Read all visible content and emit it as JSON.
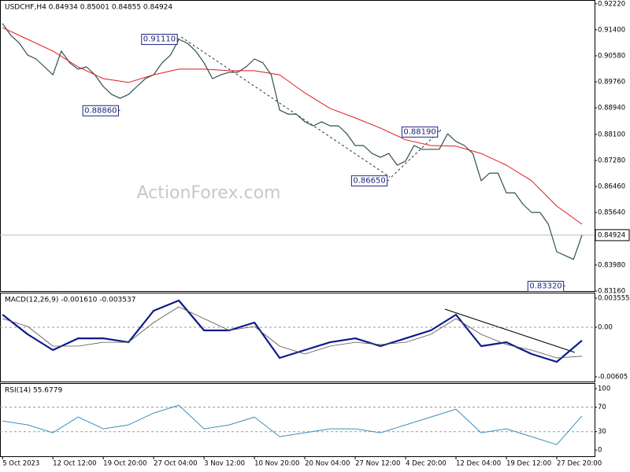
{
  "chart_data": [
    {
      "type": "line",
      "title": "USDCHF,H4  0.84934 0.85001 0.84855 0.84924",
      "watermark": "ActionForex.com",
      "xlim": [
        -0.3,
        70.5
      ],
      "ylim": [
        0.8316,
        0.9234
      ],
      "yticks": [
        {
          "value": 0.9222,
          "label": "0.92220"
        },
        {
          "value": 0.914,
          "label": "0.91400"
        },
        {
          "value": 0.9058,
          "label": "0.90580"
        },
        {
          "value": 0.8976,
          "label": "0.89760"
        },
        {
          "value": 0.8894,
          "label": "0.88940"
        },
        {
          "value": 0.881,
          "label": "0.88100"
        },
        {
          "value": 0.8728,
          "label": "0.87280"
        },
        {
          "value": 0.8646,
          "label": "0.86460"
        },
        {
          "value": 0.8564,
          "label": "0.85640"
        },
        {
          "value": 0.8398,
          "label": "0.83980"
        },
        {
          "value": 0.8316,
          "label": "0.83160"
        }
      ],
      "last_price": 0.84924,
      "series": [
        {
          "name": "USDCHF",
          "color": "#2f4f4f",
          "width": 1.2,
          "x": [
            0,
            1,
            2,
            3,
            4,
            5,
            6,
            7,
            8,
            9,
            10,
            11,
            12,
            13,
            14,
            15,
            16,
            17,
            18,
            19,
            20,
            21,
            22,
            23,
            24,
            25,
            26,
            27,
            28,
            29,
            30,
            31,
            32,
            33,
            34,
            35,
            36,
            37,
            38,
            39,
            40,
            41,
            42,
            43,
            44,
            45,
            46,
            47,
            48,
            49,
            50,
            51,
            52,
            53,
            54,
            55,
            56,
            57,
            58,
            59,
            60,
            61,
            62,
            63,
            64,
            65,
            66,
            67,
            68,
            69
          ],
          "values": [
            0.916,
            0.9122,
            0.9098,
            0.906,
            0.9048,
            0.9023,
            0.8998,
            0.9073,
            0.9036,
            0.9016,
            0.9023,
            0.8998,
            0.8961,
            0.8936,
            0.8924,
            0.8936,
            0.8961,
            0.8986,
            0.8998,
            0.9036,
            0.906,
            0.911,
            0.9098,
            0.9073,
            0.9036,
            0.8986,
            0.8998,
            0.9006,
            0.9006,
            0.9023,
            0.9048,
            0.9036,
            0.8998,
            0.8887,
            0.8874,
            0.8874,
            0.885,
            0.8837,
            0.885,
            0.8837,
            0.8837,
            0.8812,
            0.8775,
            0.8775,
            0.875,
            0.8738,
            0.875,
            0.8713,
            0.8726,
            0.8775,
            0.8763,
            0.8763,
            0.8763,
            0.8812,
            0.8788,
            0.8775,
            0.875,
            0.8664,
            0.8688,
            0.8688,
            0.8626,
            0.8626,
            0.8589,
            0.8564,
            0.8564,
            0.8527,
            0.844,
            0.8428,
            0.8416,
            0.84924
          ]
        },
        {
          "name": "MA",
          "color": "#e0191e",
          "width": 1,
          "x": [
            0,
            3,
            6,
            9,
            12,
            15,
            18,
            21,
            24,
            27,
            30,
            33,
            36,
            39,
            42,
            45,
            48,
            51,
            54,
            57,
            60,
            63,
            66,
            69
          ],
          "values": [
            0.9147,
            0.911,
            0.9073,
            0.9023,
            0.8986,
            0.8974,
            0.8998,
            0.9016,
            0.9016,
            0.9011,
            0.9011,
            0.8998,
            0.8941,
            0.8892,
            0.8862,
            0.883,
            0.8793,
            0.8775,
            0.8773,
            0.875,
            0.8713,
            0.8664,
            0.8584,
            0.8527
          ]
        }
      ],
      "annotations": [
        {
          "x": 21,
          "value": 0.9111,
          "label": "0.91110"
        },
        {
          "x": 14,
          "value": 0.8886,
          "label": "0.88860"
        },
        {
          "x": 52,
          "value": 0.8819,
          "label": "0.88190"
        },
        {
          "x": 46,
          "value": 0.8665,
          "label": "0.86650"
        },
        {
          "x": 67,
          "value": 0.8332,
          "label": "0.83320"
        }
      ]
    },
    {
      "type": "line",
      "title": "MACD(12,26,9) -0.001610 -0.003537",
      "xlim": [
        -0.3,
        70.5
      ],
      "ylim": [
        -0.00663,
        0.00423
      ],
      "yticks": [
        0.003555,
        {
          "value": 0,
          "label": "0.00"
        },
        -0.00605
      ],
      "levels": [
        0
      ],
      "series": [
        {
          "name": "MACD",
          "color": "#0b1a8c",
          "width": 2.2,
          "x": [
            0,
            3,
            6,
            9,
            12,
            15,
            18,
            21,
            24,
            27,
            30,
            33,
            36,
            39,
            42,
            45,
            48,
            51,
            54,
            57,
            60,
            63,
            66,
            69
          ],
          "values": [
            0.00154,
            -0.00086,
            -0.00279,
            -0.00135,
            -0.00135,
            -0.00183,
            0.00202,
            0.00327,
            -0.00038,
            -0.00038,
            0.00058,
            -0.00375,
            -0.00279,
            -0.00183,
            -0.00135,
            -0.00231,
            -0.00135,
            -0.00038,
            0.00154,
            -0.00231,
            -0.00183,
            -0.00327,
            -0.00423,
            -0.00161
          ]
        },
        {
          "name": "Signal",
          "color": "#555555",
          "width": 0.8,
          "x": [
            0,
            3,
            6,
            9,
            12,
            15,
            18,
            21,
            24,
            27,
            30,
            33,
            36,
            39,
            42,
            45,
            48,
            51,
            54,
            57,
            60,
            63,
            66,
            69
          ],
          "values": [
            0.00106,
            0.0001,
            -0.00231,
            -0.00231,
            -0.00183,
            -0.00183,
            0.00058,
            0.0025,
            0.00106,
            -0.00038,
            0.0001,
            -0.00231,
            -0.00327,
            -0.00231,
            -0.00183,
            -0.00211,
            -0.00183,
            -0.00086,
            0.00106,
            -0.00086,
            -0.00211,
            -0.00279,
            -0.00375,
            -0.003537
          ]
        }
      ]
    },
    {
      "type": "line",
      "title": "RSI(14) 55.6779",
      "xlim": [
        -0.3,
        70.5
      ],
      "ylim": [
        -10,
        109
      ],
      "yticks": [
        100,
        70,
        30,
        0
      ],
      "levels": [
        70,
        30
      ],
      "xticks": [
        {
          "value": 0,
          "label": "5 Oct 2023"
        },
        {
          "value": 6,
          "label": "12 Oct 12:00"
        },
        {
          "value": 12,
          "label": "19 Oct 20:00"
        },
        {
          "value": 18,
          "label": "27 Oct 04:00"
        },
        {
          "value": 24,
          "label": "3 Nov 12:00"
        },
        {
          "value": 30,
          "label": "10 Nov 20:00"
        },
        {
          "value": 36,
          "label": "20 Nov 04:00"
        },
        {
          "value": 42,
          "label": "27 Nov 12:00"
        },
        {
          "value": 48,
          "label": "4 Dec 20:00"
        },
        {
          "value": 54,
          "label": "12 Dec 04:00"
        },
        {
          "value": 60,
          "label": "19 Dec 12:00"
        },
        {
          "value": 66,
          "label": "27 Dec 20:00"
        }
      ],
      "series": [
        {
          "name": "RSI",
          "color": "#3d8fbf",
          "width": 1,
          "x": [
            0,
            3,
            6,
            9,
            12,
            15,
            18,
            21,
            24,
            27,
            30,
            33,
            36,
            39,
            42,
            45,
            48,
            51,
            54,
            57,
            60,
            63,
            66,
            69
          ],
          "values": [
            47.4,
            41,
            28.2,
            53.8,
            34.6,
            41,
            60.3,
            73.1,
            34.6,
            41,
            53.8,
            21.8,
            28.2,
            34.6,
            34.6,
            28.2,
            41,
            53.8,
            66.7,
            28.2,
            34.6,
            21.8,
            9,
            55.6779
          ]
        }
      ]
    }
  ]
}
